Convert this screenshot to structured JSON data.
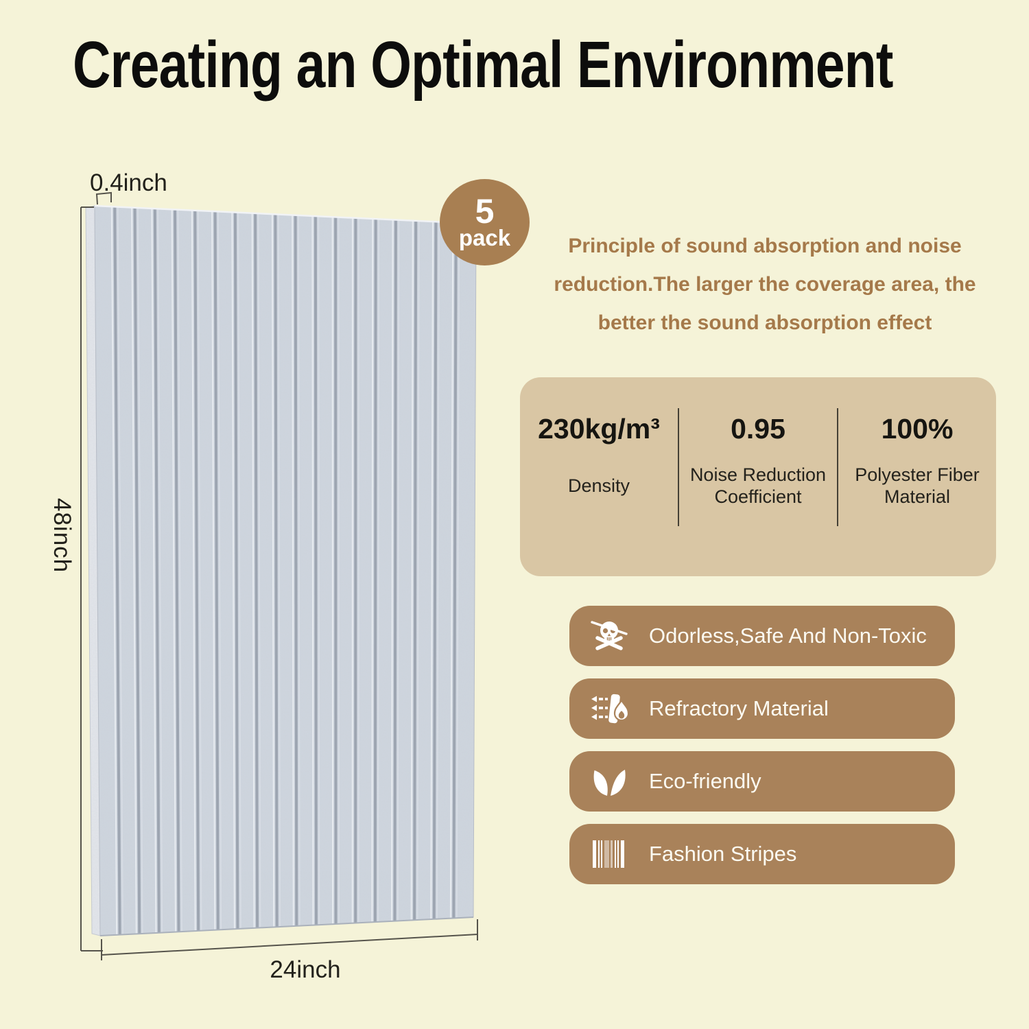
{
  "colors": {
    "background": "#f5f3d8",
    "accent_brown": "#a9825a",
    "badge_brown": "#a87f52",
    "card_tan": "#d9c6a4",
    "intro_brown": "#a5794a",
    "panel_grey": "#ced5de",
    "panel_groove_grey": "#98a1ad"
  },
  "title": "Creating an Optimal Environment",
  "pack_badge": {
    "count": "5",
    "unit": "pack"
  },
  "panel_diagram": {
    "thickness_label": "0.4inch",
    "height_label": "48inch",
    "width_label": "24inch"
  },
  "intro": {
    "line1": "Principle of sound absorption and noise",
    "line2": "reduction.The larger the coverage area, the",
    "line3": "better the sound absorption effect"
  },
  "specs": {
    "items": [
      {
        "value": "230kg/m³",
        "label_line1": "Density",
        "label_line2": ""
      },
      {
        "value": "0.95",
        "label_line1": "Noise Reduction",
        "label_line2": "Coefficient"
      },
      {
        "value": "100%",
        "label_line1": "Polyester Fiber",
        "label_line2": "Material"
      }
    ]
  },
  "features": {
    "items": [
      {
        "icon": "skull-crossbones-icon",
        "label": "Odorless,Safe And Non-Toxic"
      },
      {
        "icon": "fire-resistant-icon",
        "label": "Refractory Material"
      },
      {
        "icon": "eco-leaves-icon",
        "label": "Eco-friendly"
      },
      {
        "icon": "fashion-stripes-icon",
        "label": "Fashion Stripes"
      }
    ]
  }
}
